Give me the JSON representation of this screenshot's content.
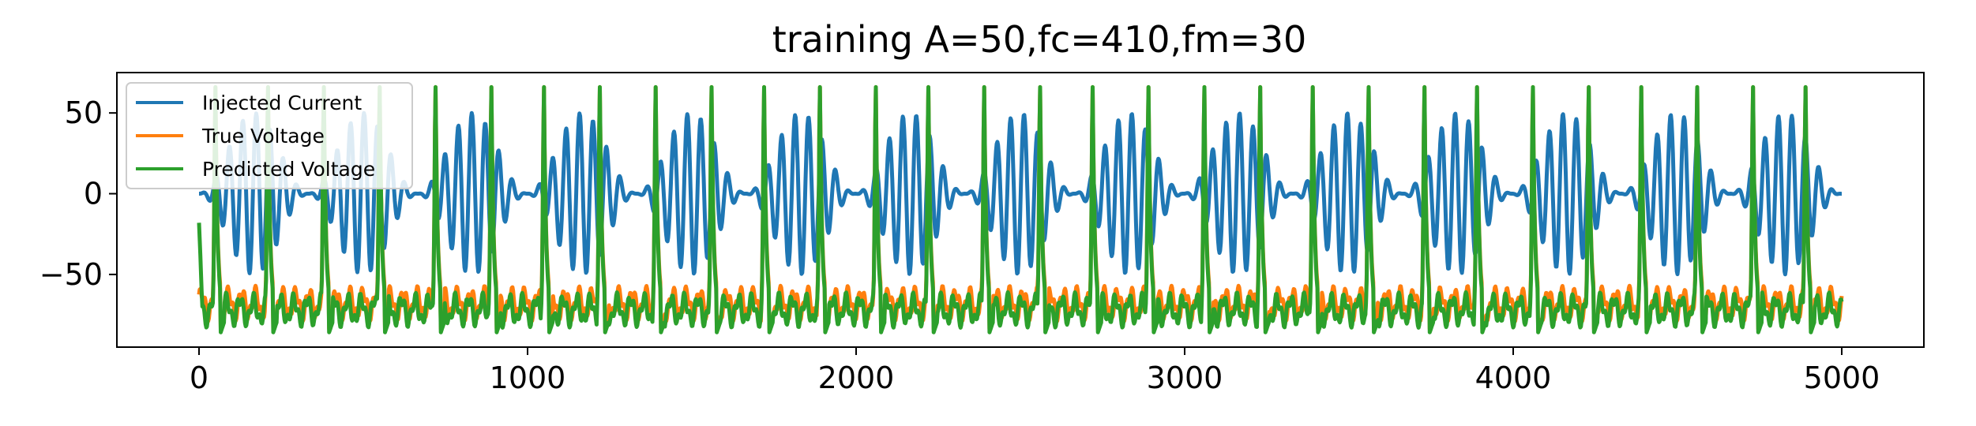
{
  "chart_data": {
    "type": "line",
    "title": "training A=50,fc=410,fm=30",
    "xlabel": "",
    "ylabel": "",
    "xlim": [
      -250,
      5250
    ],
    "ylim": [
      -95,
      75
    ],
    "x_ticks": [
      0,
      1000,
      2000,
      3000,
      4000,
      5000
    ],
    "x_tick_labels": [
      "0",
      "1000",
      "2000",
      "3000",
      "4000",
      "5000"
    ],
    "y_ticks": [
      50,
      0,
      -50
    ],
    "y_tick_labels": [
      "50",
      "0",
      "−50"
    ],
    "grid": false,
    "legend": {
      "position": "top-left",
      "entries": [
        "Injected Current",
        "True Voltage",
        "Predicted Voltage"
      ]
    },
    "series": [
      {
        "name": "Injected Current",
        "color": "#1f77b4",
        "description_params": {
          "amplitude": 50,
          "carrier_period": 41,
          "modulation_period": 333,
          "x_start": 0,
          "x_end": 5000
        }
      },
      {
        "name": "True Voltage",
        "color": "#ff7f0e",
        "baseline": -68,
        "spike_peak": 66,
        "trough": -85,
        "spike_x": [
          50,
          210,
          380,
          550,
          720,
          890,
          1050,
          1220,
          1390,
          1560,
          1720,
          1890,
          2060,
          2220,
          2390,
          2560,
          2720,
          2890,
          3060,
          3230,
          3390,
          3560,
          3730,
          3890,
          4060,
          4230,
          4390,
          4560,
          4730,
          4890
        ]
      },
      {
        "name": "Predicted Voltage",
        "color": "#2ca02c",
        "baseline": -72,
        "spike_peak": 66,
        "trough": -87,
        "start_value": -18,
        "spike_x": [
          50,
          210,
          380,
          550,
          720,
          890,
          1050,
          1220,
          1390,
          1560,
          1720,
          1890,
          2060,
          2220,
          2390,
          2560,
          2720,
          2890,
          3060,
          3230,
          3390,
          3560,
          3730,
          3890,
          4060,
          4230,
          4390,
          4560,
          4730,
          4890
        ]
      }
    ]
  }
}
